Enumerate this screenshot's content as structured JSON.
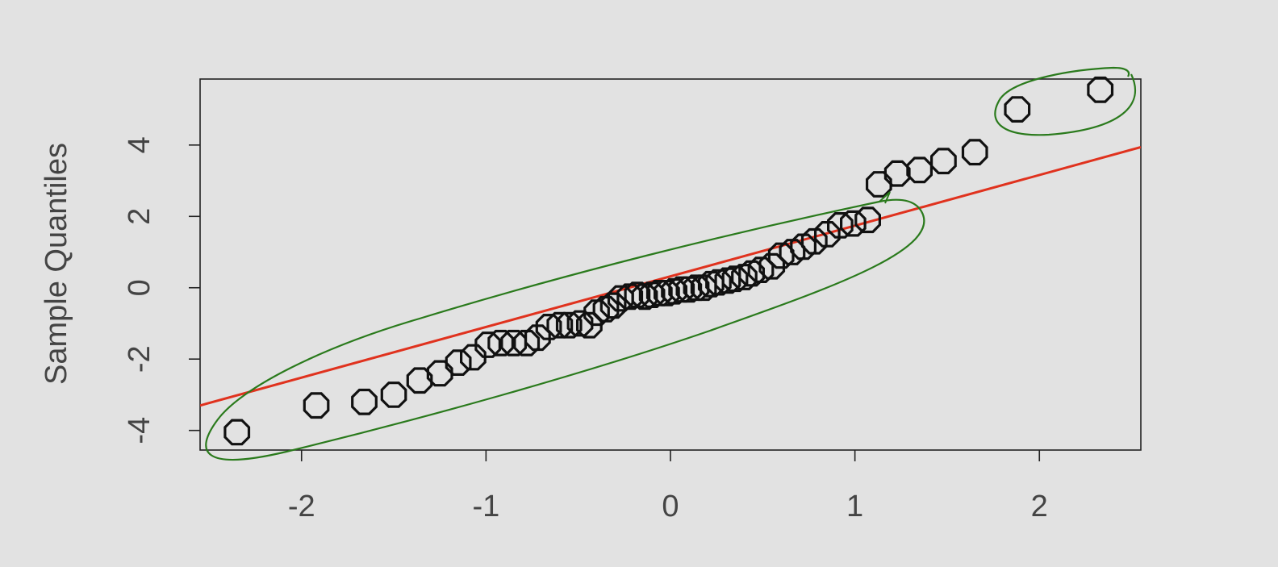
{
  "colors": {
    "background": "#e2e2e2",
    "plot_background": "#e2e2e2",
    "frame": "#222222",
    "points": "#111111",
    "reference_line": "#e0321e",
    "annotation_ink": "#2a7a1c",
    "text": "#444444"
  },
  "chart_data": {
    "type": "scatter",
    "title": "",
    "xlabel": "",
    "ylabel": "Sample Quantiles",
    "xlim": [
      -2.55,
      2.55
    ],
    "ylim": [
      -4.55,
      5.85
    ],
    "x_ticks": [
      -2,
      -1,
      0,
      1,
      2
    ],
    "x_tick_labels": [
      "-2",
      "-1",
      "0",
      "1",
      "2"
    ],
    "y_ticks": [
      -4,
      -2,
      0,
      2,
      4
    ],
    "y_tick_labels": [
      "-4",
      "-2",
      "0",
      "2",
      "4"
    ],
    "grid": false,
    "legend": "none",
    "marker": "open-octagon",
    "series": [
      {
        "points": [
          [
            -2.35,
            -4.05
          ],
          [
            -1.92,
            -3.3
          ],
          [
            -1.66,
            -3.2
          ],
          [
            -1.5,
            -3.0
          ],
          [
            -1.36,
            -2.6
          ],
          [
            -1.25,
            -2.4
          ],
          [
            -1.15,
            -2.1
          ],
          [
            -1.07,
            -1.95
          ],
          [
            -0.99,
            -1.6
          ],
          [
            -0.92,
            -1.55
          ],
          [
            -0.85,
            -1.55
          ],
          [
            -0.78,
            -1.55
          ],
          [
            -0.72,
            -1.4
          ],
          [
            -0.66,
            -1.1
          ],
          [
            -0.6,
            -1.05
          ],
          [
            -0.55,
            -1.05
          ],
          [
            -0.49,
            -1.0
          ],
          [
            -0.44,
            -1.05
          ],
          [
            -0.4,
            -0.7
          ],
          [
            -0.35,
            -0.6
          ],
          [
            -0.31,
            -0.5
          ],
          [
            -0.27,
            -0.3
          ],
          [
            -0.22,
            -0.25
          ],
          [
            -0.18,
            -0.2
          ],
          [
            -0.14,
            -0.25
          ],
          [
            -0.1,
            -0.2
          ],
          [
            -0.06,
            -0.15
          ],
          [
            -0.02,
            -0.15
          ],
          [
            0.02,
            -0.1
          ],
          [
            0.06,
            -0.05
          ],
          [
            0.1,
            -0.05
          ],
          [
            0.14,
            0.0
          ],
          [
            0.18,
            0.0
          ],
          [
            0.22,
            0.1
          ],
          [
            0.26,
            0.15
          ],
          [
            0.31,
            0.2
          ],
          [
            0.35,
            0.25
          ],
          [
            0.4,
            0.3
          ],
          [
            0.44,
            0.4
          ],
          [
            0.49,
            0.5
          ],
          [
            0.55,
            0.6
          ],
          [
            0.6,
            0.9
          ],
          [
            0.66,
            1.0
          ],
          [
            0.72,
            1.15
          ],
          [
            0.78,
            1.3
          ],
          [
            0.85,
            1.5
          ],
          [
            0.92,
            1.75
          ],
          [
            0.99,
            1.8
          ],
          [
            1.07,
            1.9
          ],
          [
            1.13,
            2.9
          ],
          [
            1.23,
            3.2
          ],
          [
            1.35,
            3.3
          ],
          [
            1.48,
            3.55
          ],
          [
            1.65,
            3.8
          ],
          [
            1.88,
            5.0
          ],
          [
            2.33,
            5.55
          ]
        ]
      }
    ],
    "reference_line": {
      "intercept": 0.32,
      "slope": 1.42
    }
  }
}
